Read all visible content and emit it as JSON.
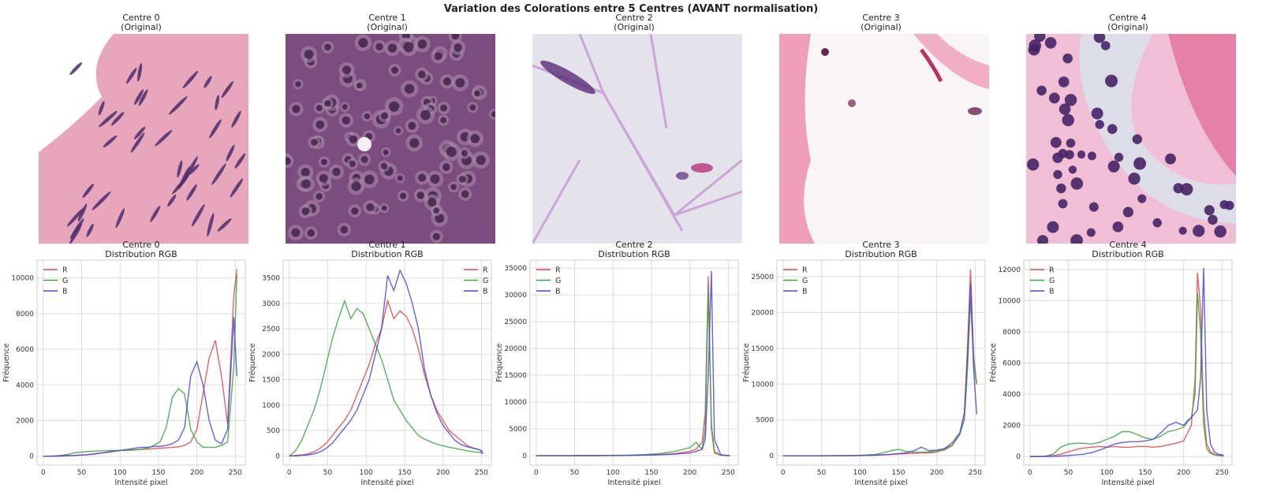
{
  "suptitle": "Variation des Colorations entre 5 Centres (AVANT normalisation)",
  "image_panels": [
    {
      "title": "Centre 0",
      "subtitle": "(Original)",
      "style": "pink-stroma",
      "bg": "#e7a6bc",
      "light": "#ffffff",
      "nuclei": "#4b2c6b"
    },
    {
      "title": "Centre 1",
      "subtitle": "(Original)",
      "style": "dense-purple",
      "bg": "#7b4c7e",
      "light": "#a985a8",
      "nuclei": "#3c1e45"
    },
    {
      "title": "Centre 2",
      "subtitle": "(Original)",
      "style": "adipose",
      "bg": "#e4e3ec",
      "light": "#c9a6d6",
      "nuclei": "#5a2a78"
    },
    {
      "title": "Centre 3",
      "subtitle": "(Original)",
      "style": "pale-pink",
      "bg": "#f9f4f6",
      "light": "#ee9eb8",
      "nuclei": "#6a2550"
    },
    {
      "title": "Centre 4",
      "subtitle": "(Original)",
      "style": "lymphocytes",
      "bg": "#f0bfd6",
      "light": "#dcdde6",
      "nuclei": "#452466"
    }
  ],
  "colors": {
    "R": "#e04646",
    "G": "#3da23d",
    "B": "#4646e0",
    "grid": "#dddddd",
    "axis": "#cccccc",
    "text": "#333333"
  },
  "chart_data": [
    {
      "type": "line",
      "title": "Centre 0",
      "subtitle": "Distribution RGB",
      "xlabel": "Intensité pixel",
      "ylabel": "Fréquence",
      "xlim": [
        -8,
        263
      ],
      "ylim": [
        -500,
        11000
      ],
      "xticks": [
        0,
        50,
        100,
        150,
        200,
        250
      ],
      "yticks": [
        0,
        2000,
        4000,
        6000,
        8000,
        10000
      ],
      "legend": "top-left",
      "grid": true,
      "x": [
        0,
        8,
        16,
        24,
        32,
        40,
        48,
        56,
        64,
        72,
        80,
        88,
        96,
        104,
        112,
        120,
        128,
        136,
        144,
        152,
        160,
        168,
        176,
        184,
        192,
        200,
        208,
        216,
        224,
        232,
        240,
        248,
        252
      ],
      "series": [
        {
          "name": "R",
          "values": [
            0,
            0,
            10,
            20,
            30,
            40,
            60,
            80,
            110,
            150,
            200,
            250,
            300,
            330,
            340,
            360,
            380,
            400,
            420,
            450,
            470,
            500,
            520,
            600,
            800,
            1500,
            3500,
            5500,
            6500,
            4500,
            1800,
            9000,
            10500
          ]
        },
        {
          "name": "G",
          "values": [
            0,
            0,
            20,
            50,
            100,
            180,
            220,
            250,
            280,
            300,
            300,
            320,
            320,
            330,
            330,
            350,
            400,
            450,
            600,
            800,
            1600,
            3300,
            3800,
            3500,
            1500,
            800,
            500,
            500,
            500,
            600,
            800,
            5000,
            10200
          ]
        },
        {
          "name": "B",
          "values": [
            0,
            0,
            0,
            10,
            20,
            40,
            60,
            80,
            120,
            160,
            200,
            250,
            300,
            350,
            400,
            450,
            500,
            500,
            550,
            550,
            600,
            700,
            900,
            1600,
            4500,
            5300,
            4000,
            2000,
            900,
            700,
            1500,
            7800,
            4500
          ]
        }
      ]
    },
    {
      "type": "line",
      "title": "Centre 1",
      "subtitle": "Distribution RGB",
      "xlabel": "Intensité pixel",
      "ylabel": "Fréquence",
      "xlim": [
        -8,
        263
      ],
      "ylim": [
        -180,
        3850
      ],
      "xticks": [
        0,
        50,
        100,
        150,
        200,
        250
      ],
      "yticks": [
        0,
        500,
        1000,
        1500,
        2000,
        2500,
        3000,
        3500
      ],
      "legend": "top-right",
      "grid": true,
      "x": [
        0,
        8,
        16,
        24,
        32,
        40,
        48,
        56,
        64,
        72,
        80,
        88,
        96,
        104,
        112,
        120,
        128,
        136,
        144,
        152,
        160,
        168,
        176,
        184,
        192,
        200,
        208,
        216,
        224,
        232,
        240,
        248,
        252
      ],
      "series": [
        {
          "name": "R",
          "values": [
            0,
            10,
            20,
            40,
            80,
            150,
            250,
            400,
            550,
            700,
            900,
            1200,
            1500,
            1800,
            2200,
            2500,
            3050,
            2700,
            2850,
            2750,
            2500,
            2100,
            1600,
            1200,
            900,
            700,
            500,
            400,
            300,
            200,
            150,
            120,
            90
          ]
        },
        {
          "name": "G",
          "values": [
            0,
            100,
            300,
            600,
            900,
            1300,
            1800,
            2300,
            2700,
            3050,
            2700,
            2900,
            2800,
            2500,
            2200,
            1900,
            1500,
            1100,
            900,
            700,
            550,
            400,
            330,
            280,
            230,
            200,
            170,
            150,
            120,
            100,
            80,
            70,
            60
          ]
        },
        {
          "name": "B",
          "values": [
            0,
            0,
            10,
            20,
            40,
            80,
            150,
            250,
            400,
            550,
            700,
            900,
            1200,
            1500,
            2000,
            2500,
            3550,
            3250,
            3650,
            3400,
            3000,
            2500,
            1700,
            1200,
            850,
            600,
            450,
            300,
            220,
            180,
            150,
            120,
            40
          ]
        }
      ]
    },
    {
      "type": "line",
      "title": "Centre 2",
      "subtitle": "Distribution RGB",
      "xlabel": "Intensité pixel",
      "ylabel": "Fréquence",
      "xlim": [
        -8,
        263
      ],
      "ylim": [
        -1750,
        36500
      ],
      "xticks": [
        0,
        50,
        100,
        150,
        200,
        250
      ],
      "yticks": [
        0,
        5000,
        10000,
        15000,
        20000,
        25000,
        30000,
        35000
      ],
      "legend": "top-left",
      "grid": true,
      "x": [
        0,
        20,
        40,
        60,
        80,
        100,
        120,
        140,
        160,
        180,
        200,
        208,
        216,
        220,
        224,
        228,
        232,
        240,
        252
      ],
      "series": [
        {
          "name": "R",
          "values": [
            0,
            0,
            0,
            10,
            20,
            50,
            80,
            120,
            200,
            400,
            800,
            1200,
            2500,
            8000,
            33500,
            5000,
            500,
            100,
            0
          ]
        },
        {
          "name": "G",
          "values": [
            0,
            0,
            0,
            10,
            30,
            60,
            100,
            200,
            400,
            800,
            1500,
            2500,
            1200,
            5000,
            31000,
            6000,
            800,
            100,
            0
          ]
        },
        {
          "name": "B",
          "values": [
            0,
            0,
            0,
            5,
            10,
            30,
            60,
            100,
            180,
            300,
            500,
            800,
            1200,
            3000,
            15000,
            34500,
            3000,
            200,
            0
          ]
        }
      ]
    },
    {
      "type": "line",
      "title": "Centre 3",
      "subtitle": "Distribution RGB",
      "xlabel": "Intensité pixel",
      "ylabel": "Fréquence",
      "xlim": [
        -8,
        263
      ],
      "ylim": [
        -1300,
        27300
      ],
      "xticks": [
        0,
        50,
        100,
        150,
        200,
        250
      ],
      "yticks": [
        0,
        5000,
        10000,
        15000,
        20000,
        25000
      ],
      "legend": "top-left",
      "grid": true,
      "x": [
        0,
        40,
        80,
        100,
        120,
        130,
        140,
        150,
        160,
        170,
        180,
        190,
        200,
        210,
        220,
        230,
        236,
        240,
        244,
        248,
        252
      ],
      "series": [
        {
          "name": "R",
          "values": [
            0,
            0,
            10,
            30,
            80,
            120,
            200,
            250,
            300,
            350,
            400,
            400,
            500,
            900,
            1500,
            3000,
            6000,
            15000,
            26000,
            14000,
            10000
          ]
        },
        {
          "name": "G",
          "values": [
            0,
            0,
            20,
            60,
            200,
            400,
            700,
            900,
            600,
            500,
            500,
            550,
            700,
            800,
            1400,
            3000,
            5000,
            12000,
            22000,
            13000,
            10000
          ]
        },
        {
          "name": "B",
          "values": [
            0,
            0,
            10,
            30,
            100,
            150,
            200,
            300,
            400,
            700,
            1200,
            700,
            800,
            1000,
            1800,
            3200,
            6000,
            14000,
            24000,
            12000,
            5800
          ]
        }
      ]
    },
    {
      "type": "line",
      "title": "Centre 4",
      "subtitle": "Distribution RGB",
      "xlabel": "Intensité pixel",
      "ylabel": "Fréquence",
      "xlim": [
        -8,
        263
      ],
      "ylim": [
        -550,
        12600
      ],
      "xticks": [
        0,
        50,
        100,
        150,
        200,
        250
      ],
      "yticks": [
        0,
        2000,
        4000,
        6000,
        8000,
        10000,
        12000
      ],
      "legend": "top-left",
      "grid": true,
      "x": [
        0,
        10,
        20,
        30,
        40,
        50,
        60,
        70,
        80,
        90,
        100,
        110,
        120,
        130,
        140,
        150,
        160,
        170,
        180,
        190,
        200,
        205,
        210,
        215,
        218,
        222,
        226,
        230,
        235,
        240,
        245,
        252
      ],
      "series": [
        {
          "name": "R",
          "values": [
            0,
            0,
            10,
            50,
            150,
            300,
            450,
            550,
            600,
            650,
            600,
            650,
            600,
            600,
            650,
            650,
            600,
            650,
            750,
            850,
            1000,
            1500,
            2000,
            5000,
            11800,
            9500,
            3000,
            800,
            300,
            150,
            80,
            50
          ]
        },
        {
          "name": "G",
          "values": [
            0,
            0,
            20,
            150,
            600,
            800,
            850,
            850,
            800,
            900,
            1100,
            1300,
            1600,
            1600,
            1400,
            1200,
            1100,
            1300,
            1600,
            1700,
            1900,
            2200,
            2500,
            4000,
            10500,
            8000,
            2000,
            500,
            200,
            100,
            60,
            40
          ]
        },
        {
          "name": "B",
          "values": [
            0,
            0,
            0,
            10,
            30,
            60,
            100,
            150,
            250,
            400,
            600,
            800,
            900,
            950,
            950,
            1000,
            1100,
            1500,
            2000,
            2200,
            2000,
            2300,
            2500,
            2800,
            3000,
            5000,
            12100,
            3000,
            800,
            300,
            150,
            80
          ]
        }
      ]
    }
  ]
}
